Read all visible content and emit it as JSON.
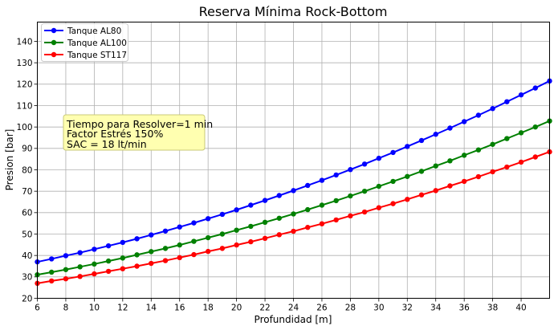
{
  "chart_data": {
    "type": "line",
    "title": "Reserva Mínima Rock-Bottom",
    "xlabel": "Profundidad [m]",
    "ylabel": "Presion [bar]",
    "xlim": [
      6,
      42
    ],
    "ylim": [
      20,
      149
    ],
    "xticks": [
      6,
      8,
      10,
      12,
      14,
      16,
      18,
      20,
      22,
      24,
      26,
      28,
      30,
      32,
      34,
      36,
      38,
      40
    ],
    "yticks": [
      20,
      30,
      40,
      50,
      60,
      70,
      80,
      90,
      100,
      110,
      120,
      130,
      140
    ],
    "grid": true,
    "legend_position": "top-left",
    "x": [
      6,
      7,
      8,
      9,
      10,
      11,
      12,
      13,
      14,
      15,
      16,
      17,
      18,
      19,
      20,
      21,
      22,
      23,
      24,
      25,
      26,
      27,
      28,
      29,
      30,
      31,
      32,
      33,
      34,
      35,
      36,
      37,
      38,
      39,
      40,
      41,
      42
    ],
    "series": [
      {
        "name": "Tanque AL80",
        "color": "#0000ff",
        "values": [
          37.0,
          38.4,
          39.9,
          41.3,
          42.9,
          44.5,
          46.1,
          47.8,
          49.6,
          51.4,
          53.3,
          55.2,
          57.2,
          59.2,
          61.3,
          63.5,
          65.7,
          68.0,
          70.3,
          72.7,
          75.1,
          77.6,
          80.1,
          82.7,
          85.4,
          88.1,
          90.9,
          93.7,
          96.6,
          99.5,
          102.5,
          105.5,
          108.6,
          111.8,
          115.0,
          118.2,
          121.5
        ]
      },
      {
        "name": "Tanque AL100",
        "color": "#008000",
        "values": [
          31.0,
          32.2,
          33.4,
          34.7,
          36.0,
          37.4,
          38.8,
          40.3,
          41.8,
          43.3,
          44.9,
          46.6,
          48.3,
          50.0,
          51.8,
          53.6,
          55.5,
          57.4,
          59.4,
          61.4,
          63.5,
          65.6,
          67.8,
          70.0,
          72.3,
          74.6,
          76.9,
          79.3,
          81.8,
          84.2,
          86.8,
          89.3,
          91.9,
          94.6,
          97.3,
          100.0,
          102.8
        ]
      },
      {
        "name": "Tanque ST117",
        "color": "#ff0000",
        "values": [
          27.0,
          28.1,
          29.1,
          30.2,
          31.4,
          32.6,
          33.8,
          35.0,
          36.3,
          37.6,
          39.0,
          40.4,
          41.9,
          43.3,
          44.9,
          46.4,
          48.0,
          49.7,
          51.3,
          53.1,
          54.8,
          56.6,
          58.5,
          60.3,
          62.3,
          64.2,
          66.2,
          68.3,
          70.3,
          72.5,
          74.6,
          76.8,
          79.1,
          81.3,
          83.6,
          86.0,
          88.4
        ]
      }
    ],
    "annotation": {
      "lines": [
        "Tiempo para Resolver=1 min",
        "Factor Estrés 150%",
        "SAC = 18 lt/min"
      ],
      "background": "#ffffb0",
      "border": "#c8c878"
    }
  }
}
